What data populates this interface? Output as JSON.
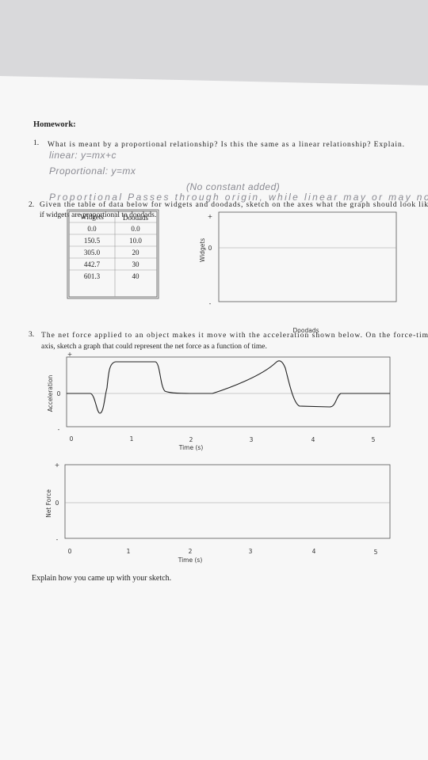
{
  "header": {
    "title": "Homework:"
  },
  "questions": [
    {
      "number": "1.",
      "lines": [
        "What is meant by a proportional relationship? Is this the same as a linear relationship? Explain."
      ]
    },
    {
      "number": "2.",
      "lines": [
        "Given the table of data below for widgets and doodads, sketch on the axes what the graph should look lik",
        "if widgets are proportional to doodads."
      ]
    },
    {
      "number": "3.",
      "lines": [
        "The net force applied to an object makes it move with the acceleration shown below. On the force-tim",
        "axis, sketch a graph that could represent the net force as a function of time."
      ]
    }
  ],
  "handwriting": [
    "linear: y=mx+c",
    "Proportional: y=mx",
    "(No constant added)",
    "Proportional Passes through origin, while linear may or may no"
  ],
  "table": {
    "header": [
      "Widgets",
      "Doodads"
    ],
    "rows": [
      [
        "0.0",
        "0.0"
      ],
      [
        "150.5",
        "10.0"
      ],
      [
        "305.0",
        "20"
      ],
      [
        "442.7",
        "30"
      ],
      [
        "601.3",
        "40"
      ]
    ]
  },
  "graphs": [
    {
      "y_label": "Widgets",
      "x_label": "Doodads",
      "y_ticks": [
        "+",
        "0",
        "-"
      ]
    },
    {
      "y_label": "Acceleration",
      "x_label": "Time (s)",
      "y_ticks": [
        "+",
        "0",
        "-"
      ],
      "x_ticks": [
        "0",
        "1",
        "2",
        "3",
        "4",
        "5"
      ]
    },
    {
      "y_label": "Net Force",
      "x_label": "Time (s)",
      "y_ticks": [
        "+",
        "0",
        "-"
      ],
      "x_ticks": [
        "0",
        "1",
        "2",
        "3",
        "4",
        "5"
      ]
    }
  ],
  "footer": "Explain how you came up with your sketch."
}
